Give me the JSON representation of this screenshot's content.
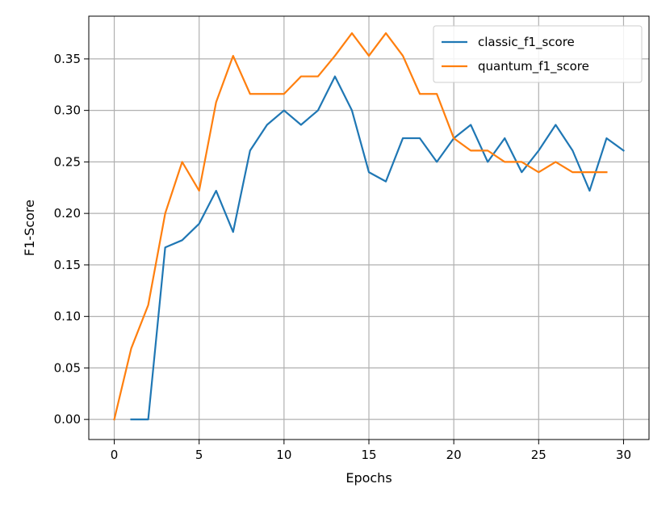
{
  "chart_data": {
    "type": "line",
    "title": "",
    "xlabel": "Epochs",
    "ylabel": "F1-Score",
    "xlim": [
      -1.5,
      31.5
    ],
    "ylim": [
      -0.0195,
      0.3915
    ],
    "xticks": [
      0,
      5,
      10,
      15,
      20,
      25,
      30
    ],
    "xtick_labels": [
      "0",
      "5",
      "10",
      "15",
      "20",
      "25",
      "30"
    ],
    "yticks": [
      0.0,
      0.05,
      0.1,
      0.15,
      0.2,
      0.25,
      0.3,
      0.35
    ],
    "ytick_labels": [
      "0.00",
      "0.05",
      "0.10",
      "0.15",
      "0.20",
      "0.25",
      "0.30",
      "0.35"
    ],
    "grid": true,
    "legend_position": "top-right",
    "series": [
      {
        "name": "classic_f1_score",
        "color": "#1f77b4",
        "x": [
          1,
          2,
          3,
          4,
          5,
          6,
          7,
          8,
          9,
          10,
          11,
          12,
          13,
          14,
          15,
          16,
          17,
          18,
          19,
          20,
          21,
          22,
          23,
          24,
          25,
          26,
          27,
          28,
          29,
          30
        ],
        "values": [
          0.0,
          0.0,
          0.167,
          0.174,
          0.19,
          0.222,
          0.182,
          0.261,
          0.286,
          0.3,
          0.286,
          0.3,
          0.333,
          0.3,
          0.24,
          0.231,
          0.273,
          0.273,
          0.25,
          0.273,
          0.286,
          0.25,
          0.273,
          0.24,
          0.261,
          0.286,
          0.261,
          0.222,
          0.273,
          0.261
        ]
      },
      {
        "name": "quantum_f1_score",
        "color": "#ff7f0e",
        "x": [
          0,
          1,
          2,
          3,
          4,
          5,
          6,
          7,
          8,
          9,
          10,
          11,
          12,
          13,
          14,
          15,
          16,
          17,
          18,
          19,
          20,
          21,
          22,
          23,
          24,
          25,
          26,
          27,
          28,
          29
        ],
        "values": [
          0.0,
          0.069,
          0.111,
          0.2,
          0.25,
          0.222,
          0.308,
          0.353,
          0.316,
          0.316,
          0.316,
          0.333,
          0.333,
          0.353,
          0.375,
          0.353,
          0.375,
          0.353,
          0.316,
          0.316,
          0.273,
          0.261,
          0.261,
          0.25,
          0.25,
          0.24,
          0.25,
          0.24,
          0.24,
          0.24
        ]
      }
    ]
  }
}
